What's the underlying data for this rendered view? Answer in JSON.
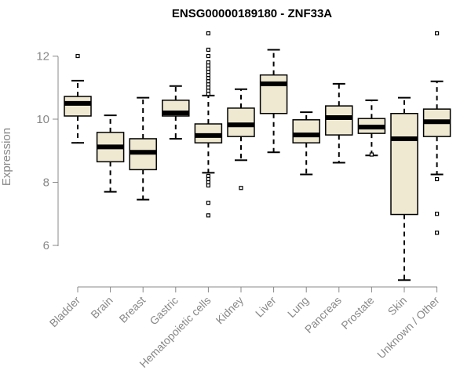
{
  "chart_data": {
    "type": "box",
    "title": "ENSG00000189180 - ZNF33A",
    "xlabel": "",
    "ylabel": "Expression",
    "ylim": [
      4.8,
      13.0
    ],
    "yticks": [
      6,
      8,
      10,
      12
    ],
    "box_fill": "#efe9d2",
    "box_stroke": "#000000",
    "axis_color": "#888888",
    "categories": [
      "Bladder",
      "Brain",
      "Breast",
      "Gastric",
      "Hematopoietic cells",
      "Kidney",
      "Liver",
      "Lung",
      "Pancreas",
      "Prostate",
      "Skin",
      "Unknown / Other"
    ],
    "boxes": [
      {
        "min": 9.25,
        "q1": 10.1,
        "median": 10.5,
        "q3": 10.72,
        "max": 11.22,
        "outliers": [
          12.0
        ]
      },
      {
        "min": 7.7,
        "q1": 8.65,
        "median": 9.12,
        "q3": 9.58,
        "max": 10.12,
        "outliers": []
      },
      {
        "min": 7.45,
        "q1": 8.4,
        "median": 8.95,
        "q3": 9.38,
        "max": 10.68,
        "outliers": []
      },
      {
        "min": 9.38,
        "q1": 10.1,
        "median": 10.2,
        "q3": 10.6,
        "max": 11.05,
        "outliers": []
      },
      {
        "min": 8.3,
        "q1": 9.25,
        "median": 9.48,
        "q3": 9.85,
        "max": 10.75,
        "outliers": [
          12.72,
          12.2,
          12.0,
          11.8,
          11.7,
          11.6,
          11.5,
          11.4,
          11.3,
          11.2,
          11.1,
          11.0,
          10.9,
          10.8,
          8.2,
          8.1,
          8.0,
          7.9,
          7.35,
          6.95
        ]
      },
      {
        "min": 8.7,
        "q1": 9.45,
        "median": 9.82,
        "q3": 10.35,
        "max": 10.95,
        "outliers": [
          7.82
        ]
      },
      {
        "min": 8.95,
        "q1": 10.18,
        "median": 11.12,
        "q3": 11.4,
        "max": 12.2,
        "outliers": []
      },
      {
        "min": 8.25,
        "q1": 9.25,
        "median": 9.5,
        "q3": 9.98,
        "max": 10.22,
        "outliers": []
      },
      {
        "min": 8.62,
        "q1": 9.5,
        "median": 10.05,
        "q3": 10.42,
        "max": 11.12,
        "outliers": []
      },
      {
        "min": 8.85,
        "q1": 9.55,
        "median": 9.75,
        "q3": 10.02,
        "max": 10.6,
        "outliers": [
          8.88
        ]
      },
      {
        "min": 4.9,
        "q1": 6.98,
        "median": 9.38,
        "q3": 10.18,
        "max": 10.68,
        "outliers": []
      },
      {
        "min": 8.25,
        "q1": 9.45,
        "median": 9.92,
        "q3": 10.32,
        "max": 11.2,
        "outliers": [
          12.72,
          8.1,
          7.0,
          6.4
        ]
      }
    ]
  }
}
